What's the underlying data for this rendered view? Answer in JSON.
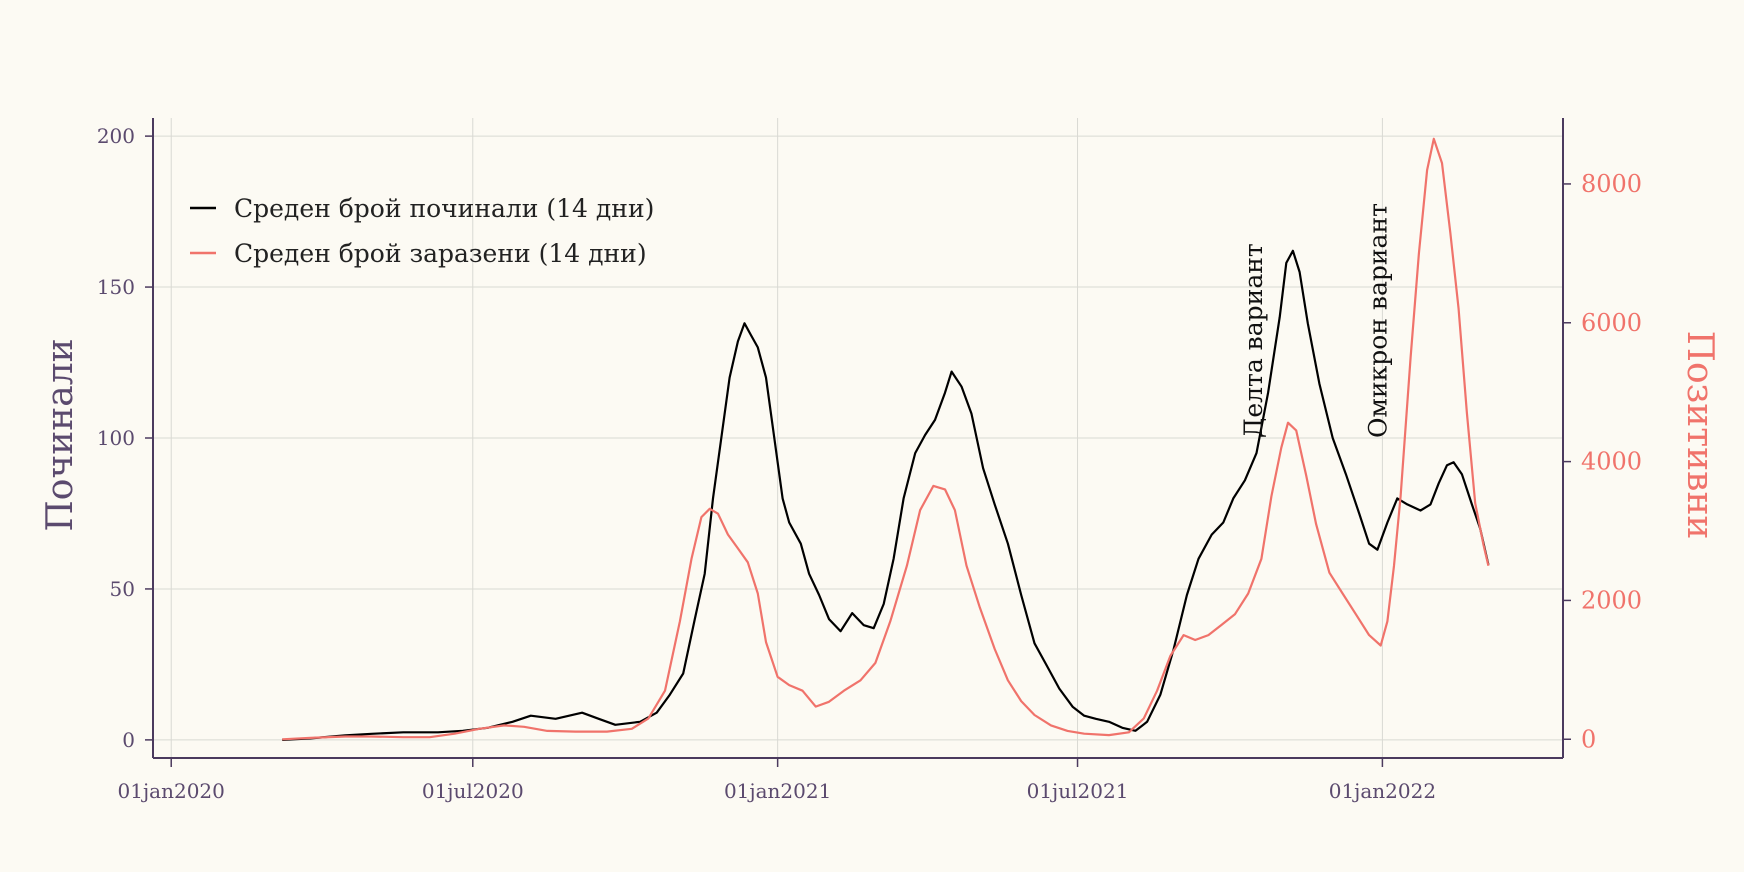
{
  "colors": {
    "background": "#fcfaf3",
    "deaths": "#000000",
    "cases": "#f0736b",
    "axis": "#4b3a5e",
    "grid": "#d9d9d3"
  },
  "chart_data": {
    "type": "line",
    "x_ticks": [
      "01jan2020",
      "01jul2020",
      "01jan2021",
      "01jul2021",
      "01jan2022"
    ],
    "x_tick_dates": [
      "2020-01-01",
      "2020-07-01",
      "2021-01-01",
      "2021-07-01",
      "2022-01-01"
    ],
    "xlim": [
      "2019-12-21",
      "2022-04-20"
    ],
    "y_left": {
      "label": "Починали",
      "ticks": [
        0,
        50,
        100,
        150,
        200
      ],
      "lim": [
        -6,
        206
      ]
    },
    "y_right": {
      "label": "Позитивни",
      "ticks": [
        "0",
        "2000",
        "4000",
        "6000",
        "8000"
      ],
      "lim": [
        -270,
        8950
      ]
    },
    "legend": {
      "position": "top-left",
      "items": [
        "Среден брой починали (14 дни)",
        "Среден брой заразени (14 дни)"
      ]
    },
    "annotations": [
      {
        "text": "Делта вариант",
        "date": "2021-10-15",
        "value": 100
      },
      {
        "text": "Омикрон вариант",
        "date": "2021-12-29",
        "value": 100
      }
    ],
    "grid": true,
    "series": [
      {
        "name": "Среден брой починали (14 дни)",
        "axis": "left",
        "points": [
          [
            "2020-03-08",
            0
          ],
          [
            "2020-03-25",
            0.5
          ],
          [
            "2020-04-15",
            1.5
          ],
          [
            "2020-05-01",
            2
          ],
          [
            "2020-05-20",
            2.5
          ],
          [
            "2020-06-10",
            2.5
          ],
          [
            "2020-06-25",
            3
          ],
          [
            "2020-07-10",
            4
          ],
          [
            "2020-07-25",
            6
          ],
          [
            "2020-08-05",
            8
          ],
          [
            "2020-08-20",
            7
          ],
          [
            "2020-09-05",
            9
          ],
          [
            "2020-09-15",
            7
          ],
          [
            "2020-09-25",
            5
          ],
          [
            "2020-10-10",
            6
          ],
          [
            "2020-10-20",
            9
          ],
          [
            "2020-10-28",
            15
          ],
          [
            "2020-11-05",
            22
          ],
          [
            "2020-11-12",
            40
          ],
          [
            "2020-11-18",
            55
          ],
          [
            "2020-11-23",
            80
          ],
          [
            "2020-11-28",
            100
          ],
          [
            "2020-12-03",
            120
          ],
          [
            "2020-12-08",
            132
          ],
          [
            "2020-12-12",
            138
          ],
          [
            "2020-12-16",
            134
          ],
          [
            "2020-12-20",
            130
          ],
          [
            "2020-12-25",
            120
          ],
          [
            "2020-12-30",
            100
          ],
          [
            "2021-01-04",
            80
          ],
          [
            "2021-01-08",
            72
          ],
          [
            "2021-01-15",
            65
          ],
          [
            "2021-01-20",
            55
          ],
          [
            "2021-01-26",
            48
          ],
          [
            "2021-02-01",
            40
          ],
          [
            "2021-02-08",
            36
          ],
          [
            "2021-02-15",
            42
          ],
          [
            "2021-02-22",
            38
          ],
          [
            "2021-02-28",
            37
          ],
          [
            "2021-03-06",
            45
          ],
          [
            "2021-03-12",
            60
          ],
          [
            "2021-03-18",
            80
          ],
          [
            "2021-03-25",
            95
          ],
          [
            "2021-03-31",
            101
          ],
          [
            "2021-04-06",
            106
          ],
          [
            "2021-04-12",
            115
          ],
          [
            "2021-04-16",
            122
          ],
          [
            "2021-04-22",
            117
          ],
          [
            "2021-04-28",
            108
          ],
          [
            "2021-05-05",
            90
          ],
          [
            "2021-05-12",
            78
          ],
          [
            "2021-05-20",
            65
          ],
          [
            "2021-05-28",
            48
          ],
          [
            "2021-06-05",
            32
          ],
          [
            "2021-06-12",
            25
          ],
          [
            "2021-06-20",
            17
          ],
          [
            "2021-06-28",
            11
          ],
          [
            "2021-07-05",
            8
          ],
          [
            "2021-07-12",
            7
          ],
          [
            "2021-07-20",
            6
          ],
          [
            "2021-07-28",
            4
          ],
          [
            "2021-08-05",
            3
          ],
          [
            "2021-08-12",
            6
          ],
          [
            "2021-08-20",
            15
          ],
          [
            "2021-08-28",
            30
          ],
          [
            "2021-09-05",
            48
          ],
          [
            "2021-09-12",
            60
          ],
          [
            "2021-09-20",
            68
          ],
          [
            "2021-09-27",
            72
          ],
          [
            "2021-10-03",
            80
          ],
          [
            "2021-10-10",
            86
          ],
          [
            "2021-10-17",
            95
          ],
          [
            "2021-10-24",
            115
          ],
          [
            "2021-10-31",
            140
          ],
          [
            "2021-11-04",
            158
          ],
          [
            "2021-11-08",
            162
          ],
          [
            "2021-11-12",
            155
          ],
          [
            "2021-11-17",
            138
          ],
          [
            "2021-11-24",
            118
          ],
          [
            "2021-12-02",
            100
          ],
          [
            "2021-12-10",
            88
          ],
          [
            "2021-12-18",
            75
          ],
          [
            "2021-12-24",
            65
          ],
          [
            "2021-12-29",
            63
          ],
          [
            "2022-01-04",
            72
          ],
          [
            "2022-01-10",
            80
          ],
          [
            "2022-01-16",
            78
          ],
          [
            "2022-01-24",
            76
          ],
          [
            "2022-01-30",
            78
          ],
          [
            "2022-02-04",
            85
          ],
          [
            "2022-02-09",
            91
          ],
          [
            "2022-02-13",
            92
          ],
          [
            "2022-02-18",
            88
          ],
          [
            "2022-02-24",
            78
          ],
          [
            "2022-03-01",
            70
          ],
          [
            "2022-03-06",
            58
          ]
        ]
      },
      {
        "name": "Среден брой заразени (14 дни)",
        "axis": "right",
        "points": [
          [
            "2020-03-08",
            0
          ],
          [
            "2020-03-25",
            20
          ],
          [
            "2020-04-15",
            40
          ],
          [
            "2020-05-01",
            40
          ],
          [
            "2020-05-20",
            30
          ],
          [
            "2020-06-05",
            30
          ],
          [
            "2020-06-20",
            80
          ],
          [
            "2020-07-05",
            150
          ],
          [
            "2020-07-20",
            200
          ],
          [
            "2020-08-01",
            180
          ],
          [
            "2020-08-15",
            120
          ],
          [
            "2020-09-01",
            110
          ],
          [
            "2020-09-20",
            110
          ],
          [
            "2020-10-05",
            150
          ],
          [
            "2020-10-15",
            300
          ],
          [
            "2020-10-25",
            700
          ],
          [
            "2020-11-03",
            1700
          ],
          [
            "2020-11-10",
            2600
          ],
          [
            "2020-11-16",
            3200
          ],
          [
            "2020-11-21",
            3320
          ],
          [
            "2020-11-26",
            3250
          ],
          [
            "2020-12-02",
            2950
          ],
          [
            "2020-12-08",
            2750
          ],
          [
            "2020-12-14",
            2550
          ],
          [
            "2020-12-20",
            2100
          ],
          [
            "2020-12-25",
            1400
          ],
          [
            "2021-01-01",
            900
          ],
          [
            "2021-01-08",
            780
          ],
          [
            "2021-01-16",
            700
          ],
          [
            "2021-01-24",
            470
          ],
          [
            "2021-02-01",
            540
          ],
          [
            "2021-02-10",
            700
          ],
          [
            "2021-02-20",
            850
          ],
          [
            "2021-03-01",
            1100
          ],
          [
            "2021-03-10",
            1700
          ],
          [
            "2021-03-20",
            2500
          ],
          [
            "2021-03-28",
            3300
          ],
          [
            "2021-04-05",
            3650
          ],
          [
            "2021-04-12",
            3600
          ],
          [
            "2021-04-18",
            3300
          ],
          [
            "2021-04-25",
            2500
          ],
          [
            "2021-05-03",
            1900
          ],
          [
            "2021-05-12",
            1300
          ],
          [
            "2021-05-20",
            850
          ],
          [
            "2021-05-28",
            550
          ],
          [
            "2021-06-05",
            350
          ],
          [
            "2021-06-15",
            200
          ],
          [
            "2021-06-25",
            120
          ],
          [
            "2021-07-05",
            80
          ],
          [
            "2021-07-20",
            60
          ],
          [
            "2021-08-01",
            100
          ],
          [
            "2021-08-10",
            300
          ],
          [
            "2021-08-18",
            700
          ],
          [
            "2021-08-26",
            1200
          ],
          [
            "2021-09-03",
            1500
          ],
          [
            "2021-09-10",
            1430
          ],
          [
            "2021-09-18",
            1500
          ],
          [
            "2021-09-26",
            1650
          ],
          [
            "2021-10-04",
            1800
          ],
          [
            "2021-10-12",
            2100
          ],
          [
            "2021-10-20",
            2600
          ],
          [
            "2021-10-26",
            3500
          ],
          [
            "2021-11-01",
            4200
          ],
          [
            "2021-11-05",
            4560
          ],
          [
            "2021-11-10",
            4450
          ],
          [
            "2021-11-16",
            3800
          ],
          [
            "2021-11-22",
            3100
          ],
          [
            "2021-11-30",
            2400
          ],
          [
            "2021-12-08",
            2100
          ],
          [
            "2021-12-16",
            1800
          ],
          [
            "2021-12-24",
            1500
          ],
          [
            "2021-12-31",
            1350
          ],
          [
            "2022-01-04",
            1700
          ],
          [
            "2022-01-08",
            2500
          ],
          [
            "2022-01-12",
            3500
          ],
          [
            "2022-01-18",
            5500
          ],
          [
            "2022-01-23",
            7000
          ],
          [
            "2022-01-28",
            8200
          ],
          [
            "2022-02-01",
            8650
          ],
          [
            "2022-02-06",
            8300
          ],
          [
            "2022-02-11",
            7300
          ],
          [
            "2022-02-16",
            6200
          ],
          [
            "2022-02-21",
            4700
          ],
          [
            "2022-02-26",
            3400
          ],
          [
            "2022-03-03",
            2800
          ],
          [
            "2022-03-06",
            2500
          ]
        ]
      }
    ]
  }
}
